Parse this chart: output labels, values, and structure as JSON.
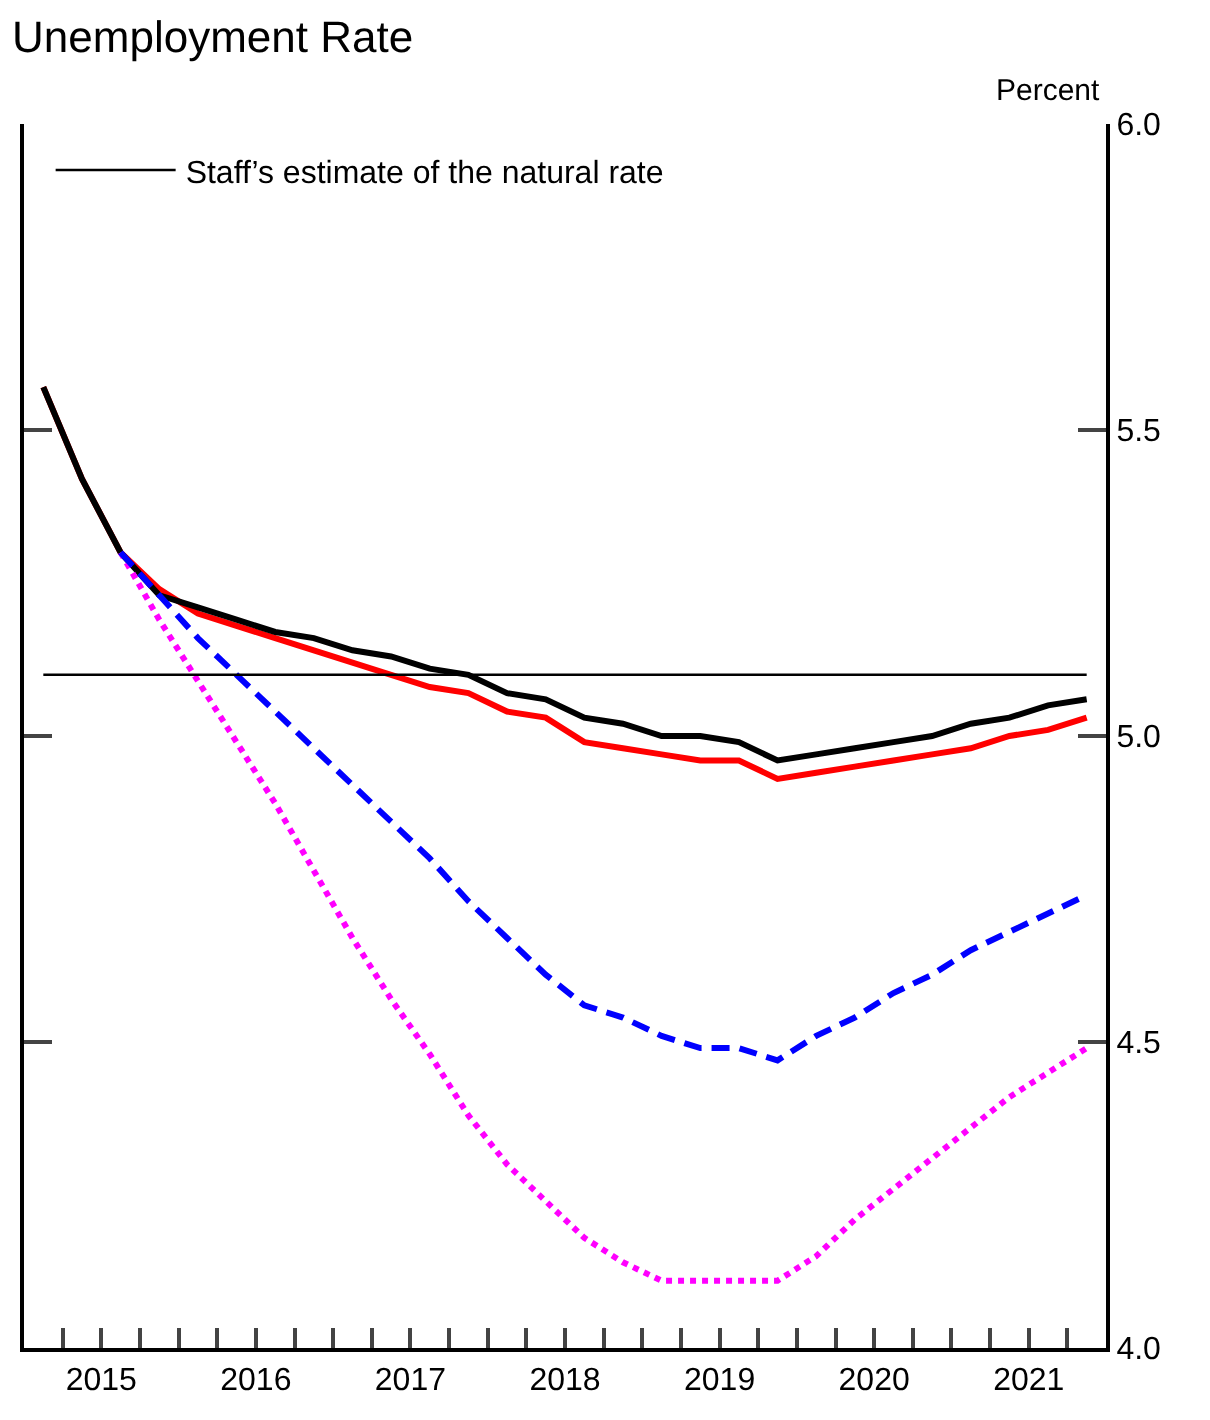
{
  "chart_data": {
    "type": "line",
    "title": "Unemployment Rate",
    "ylabel": "Percent",
    "x": [
      2015.125,
      2015.375,
      2015.625,
      2015.875,
      2016.125,
      2016.375,
      2016.625,
      2016.875,
      2017.125,
      2017.375,
      2017.625,
      2017.875,
      2018.125,
      2018.375,
      2018.625,
      2018.875,
      2019.125,
      2019.375,
      2019.625,
      2019.875,
      2020.125,
      2020.375,
      2020.625,
      2020.875,
      2021.125,
      2021.375,
      2021.625,
      2021.875
    ],
    "series": [
      {
        "color": "#ff0000",
        "line_style": "solid",
        "values": [
          5.57,
          5.42,
          5.3,
          5.24,
          5.2,
          5.18,
          5.16,
          5.14,
          5.12,
          5.1,
          5.08,
          5.07,
          5.04,
          5.03,
          4.99,
          4.98,
          4.97,
          4.96,
          4.96,
          4.93,
          4.94,
          4.95,
          4.96,
          4.97,
          4.98,
          5.0,
          5.01,
          5.03
        ]
      },
      {
        "color": "#000000",
        "line_style": "solid",
        "values": [
          5.57,
          5.42,
          5.3,
          5.23,
          5.21,
          5.19,
          5.17,
          5.16,
          5.14,
          5.13,
          5.11,
          5.1,
          5.07,
          5.06,
          5.03,
          5.02,
          5.0,
          5.0,
          4.99,
          4.96,
          4.97,
          4.98,
          4.99,
          5.0,
          5.02,
          5.03,
          5.05,
          5.06
        ]
      },
      {
        "color": "#ff00ff",
        "line_style": "dotted",
        "values": [
          null,
          null,
          5.3,
          5.19,
          5.09,
          4.99,
          4.89,
          4.78,
          4.67,
          4.57,
          4.48,
          4.38,
          4.3,
          4.24,
          4.18,
          4.14,
          4.11,
          4.11,
          4.11,
          4.11,
          4.15,
          4.21,
          4.26,
          4.31,
          4.36,
          4.41,
          4.45,
          4.49
        ]
      },
      {
        "color": "#0000ff",
        "line_style": "dashed",
        "values": [
          null,
          null,
          5.3,
          5.23,
          5.16,
          5.1,
          5.04,
          4.98,
          4.92,
          4.86,
          4.8,
          4.73,
          4.67,
          4.61,
          4.56,
          4.54,
          4.51,
          4.49,
          4.49,
          4.47,
          4.51,
          4.54,
          4.58,
          4.61,
          4.65,
          4.68,
          4.71,
          4.74
        ]
      }
    ],
    "ref_lines": [
      {
        "axis": "y",
        "value": 5.1,
        "label": "Staff’s estimate of the natural rate",
        "color": "#000000"
      }
    ],
    "xlim": [
      2015,
      2022
    ],
    "xticks": [
      {
        "value": 2015.25,
        "label": null
      },
      {
        "value": 2015.5,
        "label": "2015"
      },
      {
        "value": 2015.75,
        "label": null
      },
      {
        "value": 2016,
        "label": null
      },
      {
        "value": 2016.25,
        "label": null
      },
      {
        "value": 2016.5,
        "label": "2016"
      },
      {
        "value": 2016.75,
        "label": null
      },
      {
        "value": 2017,
        "label": null
      },
      {
        "value": 2017.25,
        "label": null
      },
      {
        "value": 2017.5,
        "label": "2017"
      },
      {
        "value": 2017.75,
        "label": null
      },
      {
        "value": 2018,
        "label": null
      },
      {
        "value": 2018.25,
        "label": null
      },
      {
        "value": 2018.5,
        "label": "2018"
      },
      {
        "value": 2018.75,
        "label": null
      },
      {
        "value": 2019,
        "label": null
      },
      {
        "value": 2019.25,
        "label": null
      },
      {
        "value": 2019.5,
        "label": "2019"
      },
      {
        "value": 2019.75,
        "label": null
      },
      {
        "value": 2020,
        "label": null
      },
      {
        "value": 2020.25,
        "label": null
      },
      {
        "value": 2020.5,
        "label": "2020"
      },
      {
        "value": 2020.75,
        "label": null
      },
      {
        "value": 2021,
        "label": null
      },
      {
        "value": 2021.25,
        "label": null
      },
      {
        "value": 2021.5,
        "label": "2021"
      },
      {
        "value": 2021.75,
        "label": null
      }
    ],
    "ylim": [
      4.0,
      6.0
    ],
    "yticks": [
      {
        "value": 4.0,
        "label": "4.0"
      },
      {
        "value": 4.5,
        "label": "4.5"
      },
      {
        "value": 5.0,
        "label": "5.0"
      },
      {
        "value": 5.5,
        "label": "5.5"
      },
      {
        "value": 6.0,
        "label": "6.0"
      }
    ],
    "grid": false,
    "legend": "top left",
    "marker": "none"
  }
}
